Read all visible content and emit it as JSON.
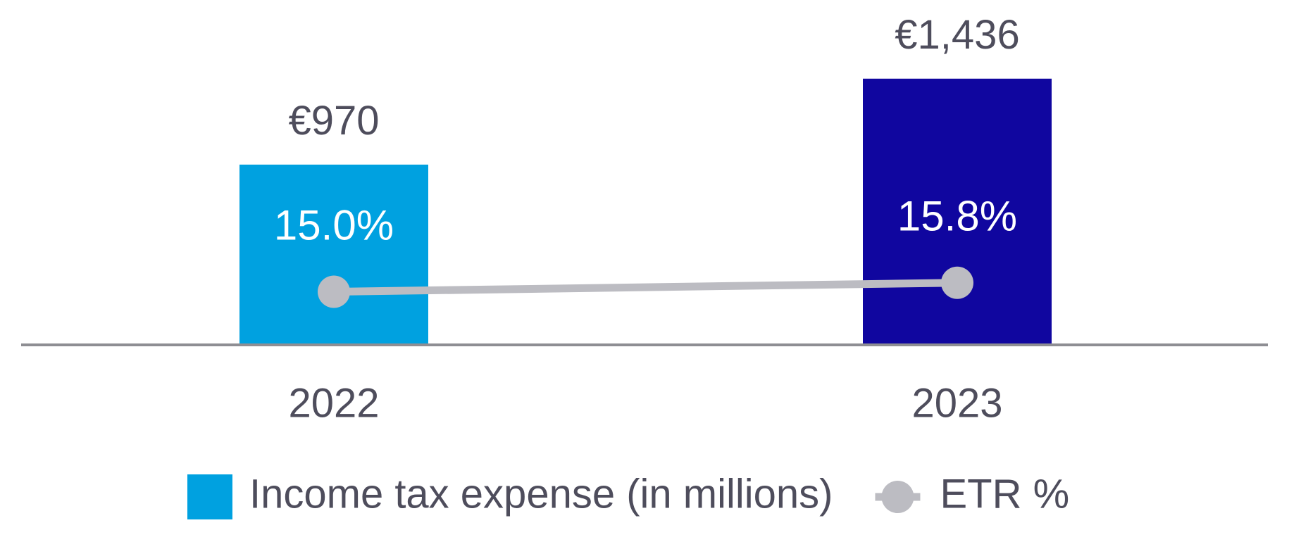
{
  "chart_data": {
    "type": "bar_line",
    "categories": [
      "2022",
      "2023"
    ],
    "ylim": [
      0,
      1500
    ],
    "y2lim": [
      10.4,
      35
    ],
    "series": [
      {
        "name": "Income tax expense (in millions)",
        "type": "bar",
        "color": "#00a1e0",
        "colors": [
          "#00a1e0",
          "#10069f"
        ],
        "values": [
          970,
          1436
        ],
        "value_labels": [
          "€970",
          "€1,436"
        ]
      },
      {
        "name": "ETR %",
        "type": "line",
        "axis": "y2",
        "color": "#bcbcc2",
        "values": [
          15.0,
          15.8
        ],
        "value_labels": [
          "15.0%",
          "15.8%"
        ]
      }
    ]
  }
}
